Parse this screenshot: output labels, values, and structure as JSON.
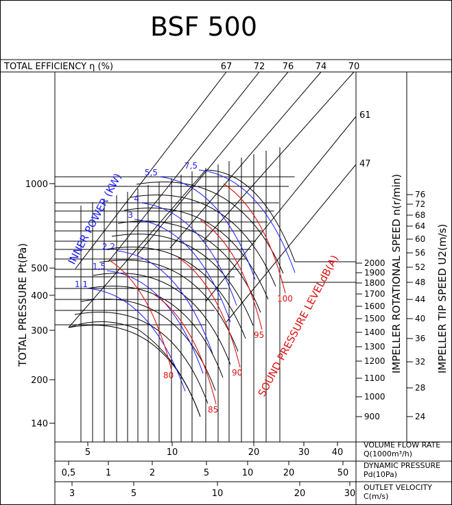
{
  "chart_data": {
    "type": "line",
    "title": "BSF 500",
    "efficiency_header": "TOTAL EFFICIENCY η (%)",
    "efficiency_values": [
      "67",
      "72",
      "76",
      "74",
      "70"
    ],
    "ylabel": "TOTAL PRESSURE Pt(Pa)",
    "y_ticks": [
      "1000",
      "500",
      "400",
      "300",
      "200",
      "140"
    ],
    "ylim": [
      120,
      2500
    ],
    "scale": "log",
    "inner_power_label": "INNER POWER (KW)",
    "power_values": [
      "1,1",
      "1,5",
      "2,2",
      "3",
      "4",
      "5,5",
      "7,5"
    ],
    "sound_label": "SOUND PRESSURE LEVELdB(A)",
    "sound_values": [
      "80",
      "85",
      "90",
      "95",
      "100"
    ],
    "speed_label": "IMPELLER ROTATIONAL SPEED n(r/min)",
    "speed_values": [
      "2000",
      "1900",
      "1800",
      "1700",
      "1600",
      "1500",
      "1400",
      "1300",
      "1200",
      "1100",
      "1000",
      "900"
    ],
    "tip_speed_label": "IMPELLER TIP SPEED U2(m/s)",
    "tip_speed_values": [
      "76",
      "72",
      "68",
      "64",
      "60",
      "56",
      "52",
      "48",
      "44",
      "40",
      "36",
      "32",
      "28",
      "24"
    ],
    "angled_values": [
      "61",
      "47"
    ],
    "flow_label": "VOLUME FLOW RATE",
    "flow_unit": "Q(1000m³/h)",
    "flow_ticks": [
      "5",
      "10",
      "20",
      "30",
      "40"
    ],
    "dyn_label": "DYNAMIC PRESSURE",
    "dyn_unit": "Pd(10Pa)",
    "dyn_ticks": [
      "0,5",
      "1",
      "2",
      "5",
      "10",
      "20",
      "50"
    ],
    "vel_label": "OUTLET VELOCITY",
    "vel_unit": "C(m/s)",
    "vel_ticks": [
      "3",
      "5",
      "10",
      "20",
      "30"
    ],
    "colors": {
      "blue": "#1a1aff",
      "red": "#e01010",
      "black": "#000000"
    }
  }
}
